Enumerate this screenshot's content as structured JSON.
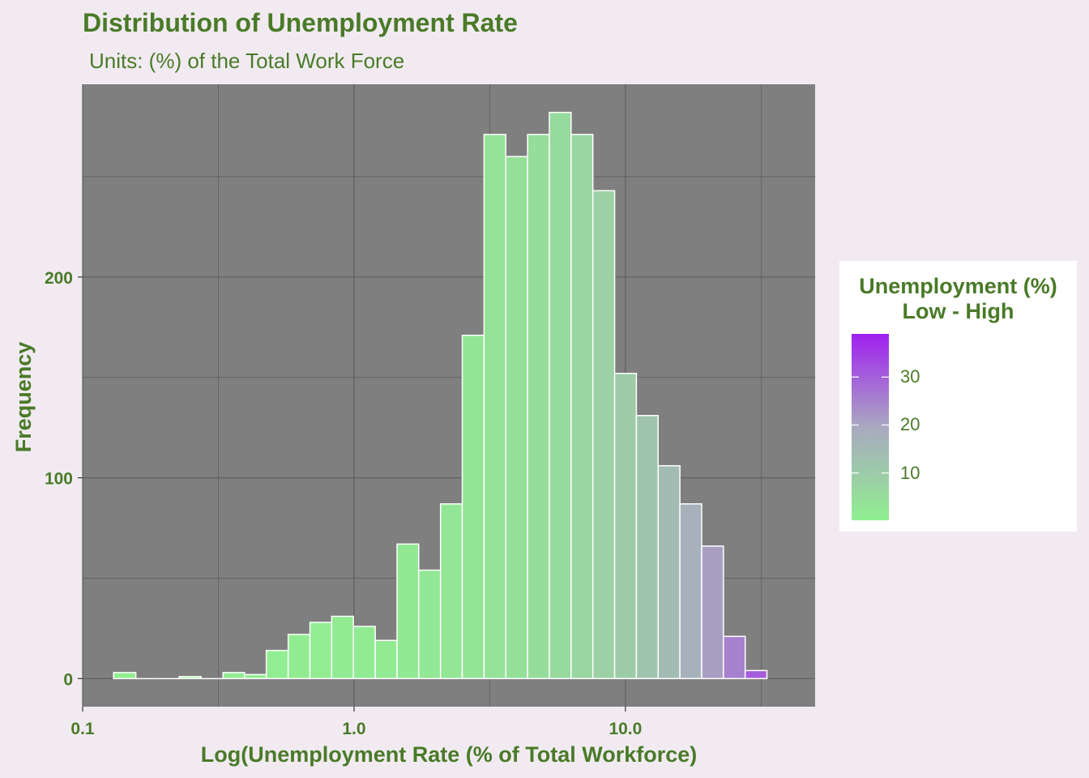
{
  "title": "Distribution of Unemployment Rate",
  "subtitle": "Units: (%) of the Total Work Force",
  "chart_data": {
    "type": "bar",
    "subtype": "histogram",
    "xlabel": "Log(Unemployment Rate (% of Total Workforce)",
    "ylabel": "Frequency",
    "x_scale": "log10",
    "x_tick_labels": [
      "0.1",
      "1.0",
      "10.0"
    ],
    "x_ticks": [
      0.1,
      1.0,
      10.0
    ],
    "y_ticks": [
      0,
      100,
      200
    ],
    "xlim": [
      0.1,
      50
    ],
    "ylim": [
      -14,
      296
    ],
    "grid": true,
    "bins": [
      {
        "x0": 0.13,
        "x1": 0.157,
        "count": 3
      },
      {
        "x0": 0.157,
        "x1": 0.189,
        "count": 0
      },
      {
        "x0": 0.189,
        "x1": 0.227,
        "count": 0
      },
      {
        "x0": 0.227,
        "x1": 0.273,
        "count": 1
      },
      {
        "x0": 0.273,
        "x1": 0.329,
        "count": 0
      },
      {
        "x0": 0.329,
        "x1": 0.395,
        "count": 3
      },
      {
        "x0": 0.395,
        "x1": 0.475,
        "count": 2
      },
      {
        "x0": 0.475,
        "x1": 0.572,
        "count": 14
      },
      {
        "x0": 0.572,
        "x1": 0.688,
        "count": 22
      },
      {
        "x0": 0.688,
        "x1": 0.827,
        "count": 28
      },
      {
        "x0": 0.827,
        "x1": 0.995,
        "count": 31
      },
      {
        "x0": 0.995,
        "x1": 1.197,
        "count": 26
      },
      {
        "x0": 1.197,
        "x1": 1.44,
        "count": 19
      },
      {
        "x0": 1.44,
        "x1": 1.731,
        "count": 67
      },
      {
        "x0": 1.731,
        "x1": 2.083,
        "count": 54
      },
      {
        "x0": 2.083,
        "x1": 2.505,
        "count": 87
      },
      {
        "x0": 2.505,
        "x1": 3.013,
        "count": 171
      },
      {
        "x0": 3.013,
        "x1": 3.624,
        "count": 271
      },
      {
        "x0": 3.624,
        "x1": 4.359,
        "count": 260
      },
      {
        "x0": 4.359,
        "x1": 5.243,
        "count": 271
      },
      {
        "x0": 5.243,
        "x1": 6.306,
        "count": 282
      },
      {
        "x0": 6.306,
        "x1": 7.585,
        "count": 271
      },
      {
        "x0": 7.585,
        "x1": 9.123,
        "count": 243
      },
      {
        "x0": 9.123,
        "x1": 10.973,
        "count": 152
      },
      {
        "x0": 10.973,
        "x1": 13.198,
        "count": 131
      },
      {
        "x0": 13.198,
        "x1": 15.875,
        "count": 106
      },
      {
        "x0": 15.875,
        "x1": 19.094,
        "count": 87
      },
      {
        "x0": 19.094,
        "x1": 22.966,
        "count": 66
      },
      {
        "x0": 22.966,
        "x1": 27.624,
        "count": 21
      },
      {
        "x0": 27.624,
        "x1": 33.225,
        "count": 4
      }
    ],
    "fill_scale": {
      "low_color": "#90ee90",
      "mid_color": "#a9a9c0",
      "high_color": "#a020f0",
      "min": 0.13,
      "max": 39
    },
    "bar_outline": "#ffffff",
    "panel_background": "#7f7f7f",
    "legend_position": "right"
  },
  "legend": {
    "title_line1": "Unemployment (%)",
    "title_line2": "Low - High",
    "ticks": [
      {
        "label": "30",
        "value": 30
      },
      {
        "label": "20",
        "value": 20
      },
      {
        "label": "10",
        "value": 10
      }
    ]
  },
  "colors": {
    "text": "#4a7a28",
    "page_background": "#f1ebf1"
  }
}
